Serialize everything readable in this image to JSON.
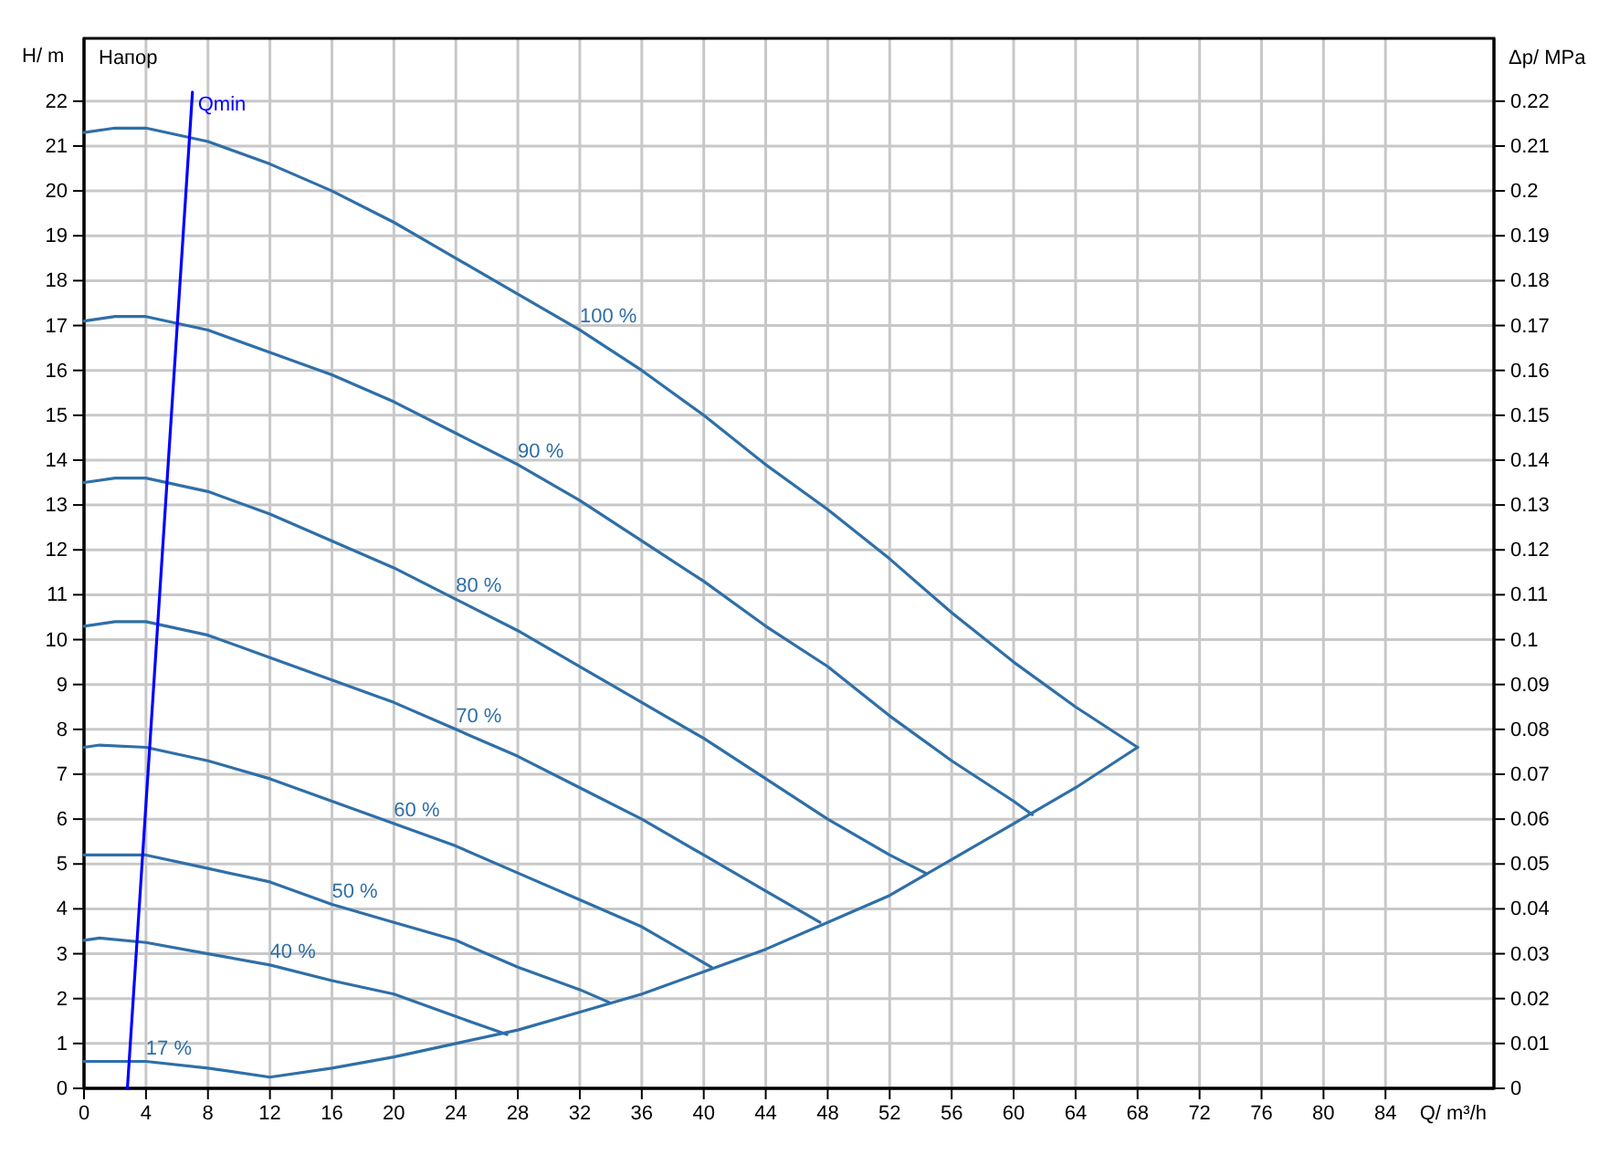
{
  "chart_data": {
    "type": "line",
    "xlabel": "Q/ m³/h",
    "ylabel": "H/ m",
    "y2label": "Δp/ MPa",
    "annotations": [
      "Напор"
    ],
    "xlim": [
      0,
      91
    ],
    "xticks": [
      0,
      4,
      8,
      12,
      16,
      20,
      24,
      28,
      32,
      36,
      40,
      44,
      48,
      52,
      56,
      60,
      64,
      68,
      72,
      76,
      80,
      84
    ],
    "ylim": [
      0,
      23.4
    ],
    "yticks": [
      0,
      1,
      2,
      3,
      4,
      5,
      6,
      7,
      8,
      9,
      10,
      11,
      12,
      13,
      14,
      15,
      16,
      17,
      18,
      19,
      20,
      21,
      22
    ],
    "y2lim": [
      0,
      0.234
    ],
    "y2ticks": [
      0,
      0.01,
      0.02,
      0.03,
      0.04,
      0.05,
      0.06,
      0.07,
      0.08,
      0.09,
      0.1,
      0.11,
      0.12,
      0.13,
      0.14,
      0.15,
      0.16,
      0.17,
      0.18,
      0.19,
      0.2,
      0.21,
      0.22
    ],
    "grid": true,
    "legend": false,
    "line_style": "solid",
    "marker": "none",
    "series": [
      {
        "name": "100 %",
        "color": "#2f6fa7",
        "x": [
          0,
          2,
          4,
          8,
          12,
          16,
          20,
          24,
          28,
          32,
          36,
          40,
          44,
          48,
          52,
          56,
          60,
          64,
          68
        ],
        "values": [
          21.3,
          21.4,
          21.4,
          21.1,
          20.6,
          20.0,
          19.3,
          18.5,
          17.7,
          16.9,
          16.0,
          15.0,
          13.9,
          12.9,
          11.8,
          10.6,
          9.5,
          8.5,
          7.6
        ]
      },
      {
        "name": "90 %",
        "color": "#2f6fa7",
        "x": [
          0,
          2,
          4,
          8,
          12,
          16,
          20,
          24,
          28,
          32,
          36,
          40,
          44,
          48,
          52,
          56,
          60,
          61.2
        ],
        "values": [
          17.1,
          17.2,
          17.2,
          16.9,
          16.4,
          15.9,
          15.3,
          14.6,
          13.9,
          13.1,
          12.2,
          11.3,
          10.3,
          9.4,
          8.3,
          7.3,
          6.4,
          6.1
        ]
      },
      {
        "name": "80 %",
        "color": "#2f6fa7",
        "x": [
          0,
          2,
          4,
          8,
          12,
          16,
          20,
          24,
          28,
          32,
          36,
          40,
          44,
          48,
          52,
          54.3
        ],
        "values": [
          13.5,
          13.6,
          13.6,
          13.3,
          12.8,
          12.2,
          11.6,
          10.9,
          10.2,
          9.4,
          8.6,
          7.8,
          6.9,
          6.0,
          5.2,
          4.8
        ]
      },
      {
        "name": "70 %",
        "color": "#2f6fa7",
        "x": [
          0,
          2,
          4,
          8,
          12,
          16,
          20,
          24,
          28,
          32,
          36,
          40,
          44,
          47.5
        ],
        "values": [
          10.3,
          10.4,
          10.4,
          10.1,
          9.6,
          9.1,
          8.6,
          8.0,
          7.4,
          6.7,
          6.0,
          5.2,
          4.4,
          3.7
        ]
      },
      {
        "name": "60 %",
        "color": "#2f6fa7",
        "x": [
          0,
          1,
          4,
          8,
          12,
          16,
          20,
          24,
          28,
          32,
          36,
          40.5
        ],
        "values": [
          7.6,
          7.65,
          7.6,
          7.3,
          6.9,
          6.4,
          5.9,
          5.4,
          4.8,
          4.2,
          3.6,
          2.7
        ]
      },
      {
        "name": "50 %",
        "color": "#2f6fa7",
        "x": [
          0,
          4,
          8,
          12,
          16,
          20,
          24,
          28,
          32,
          34
        ],
        "values": [
          5.2,
          5.2,
          4.9,
          4.6,
          4.1,
          3.7,
          3.3,
          2.7,
          2.2,
          1.9
        ]
      },
      {
        "name": "40 %",
        "color": "#2f6fa7",
        "x": [
          0,
          1,
          4,
          8,
          12,
          16,
          20,
          24,
          27.3
        ],
        "values": [
          3.3,
          3.35,
          3.25,
          3.0,
          2.75,
          2.4,
          2.1,
          1.6,
          1.2
        ]
      },
      {
        "name": "17 %",
        "color": "#2f6fa7",
        "x": [
          0,
          4,
          8,
          12,
          16,
          20,
          24,
          28,
          32,
          36,
          40,
          44,
          48,
          52,
          56,
          60,
          64,
          68
        ],
        "values": [
          0.6,
          0.6,
          0.45,
          0.25,
          0.45,
          0.7,
          1.0,
          1.3,
          1.7,
          2.1,
          2.6,
          3.1,
          3.7,
          4.3,
          5.1,
          5.9,
          6.7,
          7.6
        ]
      },
      {
        "name": "Qmin",
        "color": "#0000ff",
        "x": [
          2.8,
          7.0
        ],
        "values": [
          0,
          22.2
        ]
      }
    ]
  }
}
